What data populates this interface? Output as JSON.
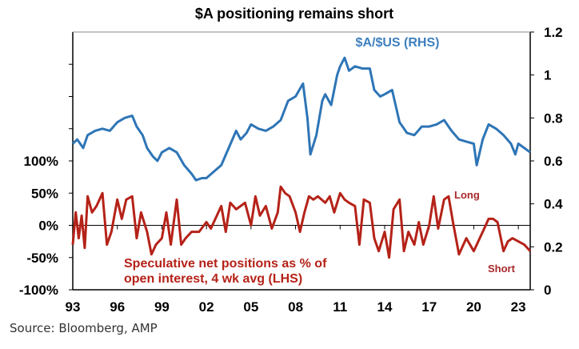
{
  "chart_data": {
    "type": "line",
    "title": "$A positioning remains short",
    "x_tick_labels": [
      "93",
      "96",
      "99",
      "02",
      "05",
      "08",
      "11",
      "14",
      "17",
      "20",
      "23"
    ],
    "x_tick_years": [
      1993,
      1996,
      1999,
      2002,
      2005,
      2008,
      2011,
      2014,
      2017,
      2020,
      2023
    ],
    "xlim": [
      1993,
      2023.8
    ],
    "left_axis": {
      "ylim": [
        -100,
        300
      ],
      "tick_labels": [
        "100%",
        "50%",
        "0%",
        "-50%",
        "-100%"
      ],
      "tick_values": [
        100,
        50,
        0,
        -50,
        -100
      ],
      "unlabeled_ticks": [
        150,
        200,
        250
      ]
    },
    "right_axis": {
      "ylim": [
        0,
        1.2
      ],
      "tick_labels": [
        "1.2",
        "1",
        "0.8",
        "0.6",
        "0.4",
        "0.2",
        "0"
      ],
      "tick_values": [
        1.2,
        1.0,
        0.8,
        0.6,
        0.4,
        0.2,
        0
      ]
    },
    "series": [
      {
        "name": "$A/$US (RHS)",
        "axis": "right",
        "color": "#2e75b6",
        "x": [
          1993,
          1993.3,
          1993.7,
          1994,
          1994.5,
          1995,
          1995.5,
          1996,
          1996.5,
          1997,
          1997.3,
          1997.7,
          1998,
          1998.4,
          1998.7,
          1999,
          1999.5,
          2000,
          2000.5,
          2001,
          2001.3,
          2001.7,
          2002,
          2002.5,
          2003,
          2003.5,
          2004,
          2004.3,
          2004.7,
          2005,
          2005.5,
          2006,
          2006.5,
          2007,
          2007.5,
          2008,
          2008.5,
          2008.8,
          2009,
          2009.4,
          2009.8,
          2010,
          2010.4,
          2010.8,
          2011,
          2011.3,
          2011.6,
          2012,
          2012.5,
          2013,
          2013.3,
          2013.7,
          2014,
          2014.5,
          2015,
          2015.5,
          2016,
          2016.5,
          2017,
          2017.5,
          2018,
          2018.5,
          2019,
          2019.5,
          2020,
          2020.2,
          2020.6,
          2021,
          2021.5,
          2022,
          2022.5,
          2022.8,
          2023,
          2023.4,
          2023.8
        ],
        "y": [
          0.68,
          0.7,
          0.66,
          0.72,
          0.74,
          0.75,
          0.74,
          0.78,
          0.8,
          0.81,
          0.76,
          0.72,
          0.66,
          0.62,
          0.6,
          0.64,
          0.66,
          0.64,
          0.58,
          0.54,
          0.51,
          0.52,
          0.52,
          0.55,
          0.58,
          0.66,
          0.74,
          0.7,
          0.73,
          0.77,
          0.75,
          0.74,
          0.76,
          0.79,
          0.88,
          0.9,
          0.96,
          0.8,
          0.63,
          0.72,
          0.88,
          0.91,
          0.86,
          1.0,
          1.04,
          1.08,
          1.02,
          1.04,
          1.03,
          1.03,
          0.93,
          0.9,
          0.91,
          0.93,
          0.78,
          0.73,
          0.72,
          0.76,
          0.76,
          0.77,
          0.79,
          0.74,
          0.7,
          0.69,
          0.68,
          0.58,
          0.7,
          0.77,
          0.75,
          0.72,
          0.68,
          0.63,
          0.68,
          0.66,
          0.64
        ]
      },
      {
        "name": "Speculative net positions as % of open interest, 4 wk avg (LHS)",
        "axis": "left",
        "color": "#b52218",
        "x": [
          1993,
          1993.2,
          1993.4,
          1993.6,
          1993.8,
          1994,
          1994.3,
          1994.6,
          1995,
          1995.3,
          1995.6,
          1996,
          1996.3,
          1996.6,
          1997,
          1997.3,
          1997.6,
          1998,
          1998.3,
          1998.6,
          1999,
          1999.3,
          1999.6,
          2000,
          2000.3,
          2000.6,
          2001,
          2001.5,
          2002,
          2002.3,
          2002.6,
          2003,
          2003.3,
          2003.6,
          2004,
          2004.3,
          2004.6,
          2005,
          2005.3,
          2005.6,
          2006,
          2006.4,
          2006.8,
          2007,
          2007.3,
          2007.6,
          2008,
          2008.3,
          2008.6,
          2008.9,
          2009.2,
          2009.5,
          2010,
          2010.3,
          2010.6,
          2011,
          2011.3,
          2011.6,
          2012,
          2012.3,
          2012.6,
          2013,
          2013.3,
          2013.6,
          2014,
          2014.3,
          2014.6,
          2015,
          2015.3,
          2015.6,
          2016,
          2016.3,
          2016.6,
          2017,
          2017.3,
          2017.6,
          2018,
          2018.3,
          2018.6,
          2019,
          2019.5,
          2020,
          2020.3,
          2020.6,
          2021,
          2021.3,
          2021.6,
          2022,
          2022.3,
          2022.6,
          2023,
          2023.4,
          2023.8
        ],
        "y": [
          -30,
          20,
          -20,
          15,
          -35,
          45,
          20,
          30,
          50,
          -30,
          -10,
          40,
          10,
          40,
          45,
          -20,
          20,
          -10,
          -45,
          -30,
          -20,
          20,
          -30,
          40,
          -30,
          -20,
          -10,
          -10,
          5,
          -5,
          10,
          30,
          -10,
          35,
          25,
          30,
          35,
          0,
          45,
          15,
          30,
          -5,
          20,
          60,
          50,
          45,
          20,
          -10,
          20,
          45,
          40,
          45,
          35,
          45,
          20,
          50,
          40,
          35,
          30,
          -30,
          40,
          35,
          -20,
          -40,
          -10,
          -50,
          25,
          40,
          -40,
          -10,
          -30,
          5,
          -30,
          0,
          45,
          -5,
          40,
          45,
          5,
          -45,
          -20,
          -40,
          -25,
          -10,
          10,
          10,
          5,
          -40,
          -25,
          -20,
          -25,
          -30,
          -40
        ]
      }
    ],
    "annotations": {
      "series_label_rhs": "$A/$US (RHS)",
      "series_label_lhs_line1": "Speculative net positions as % of",
      "series_label_lhs_line2": "open interest, 4 wk avg (LHS)",
      "long": "Long",
      "short": "Short"
    },
    "grid": false,
    "legend": "none"
  },
  "source": "Source: Bloomberg, AMP"
}
